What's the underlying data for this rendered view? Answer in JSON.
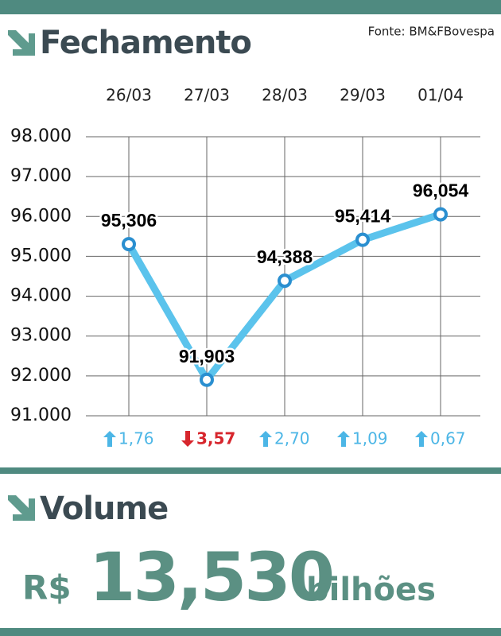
{
  "chart_data": {
    "type": "line",
    "title": "Fechamento",
    "source": "Fonte: BM&FBovespa",
    "categories": [
      "26/03",
      "27/03",
      "28/03",
      "29/03",
      "01/04"
    ],
    "values": [
      95306,
      91903,
      94388,
      95414,
      96054
    ],
    "value_labels": [
      "95,306",
      "91,903",
      "94,388",
      "95,414",
      "96,054"
    ],
    "color": "#5bc3ec",
    "ylim": [
      91000,
      98000
    ],
    "yticks": [
      {
        "value": 91000,
        "label": "91.000"
      },
      {
        "value": 92000,
        "label": "92.000"
      },
      {
        "value": 93000,
        "label": "93.000"
      },
      {
        "value": 94000,
        "label": "94.000"
      },
      {
        "value": 95000,
        "label": "95.000"
      },
      {
        "value": 96000,
        "label": "96.000"
      },
      {
        "value": 97000,
        "label": "97.000"
      },
      {
        "value": 98000,
        "label": "98.000"
      }
    ],
    "grid": true,
    "changes": [
      {
        "label": "1,76",
        "direction": "up"
      },
      {
        "label": "3,57",
        "direction": "down"
      },
      {
        "label": "2,70",
        "direction": "up"
      },
      {
        "label": "1,09",
        "direction": "up"
      },
      {
        "label": "0,67",
        "direction": "up"
      }
    ]
  },
  "volume": {
    "title": "Volume",
    "prefix": "R$",
    "value": "13,530",
    "unit": "bilhões"
  }
}
